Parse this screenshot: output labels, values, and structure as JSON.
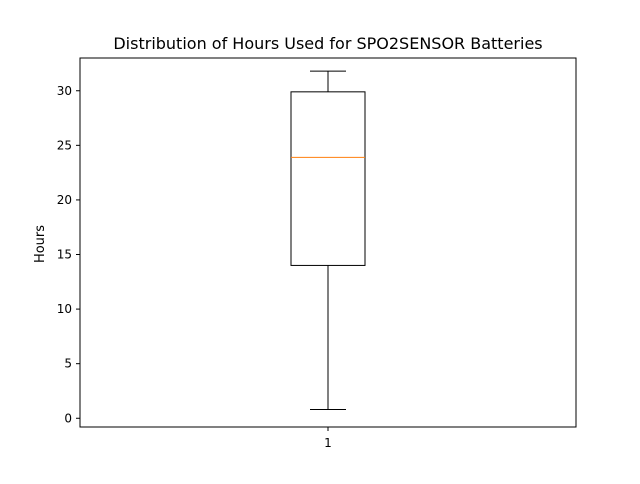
{
  "chart_data": {
    "type": "box",
    "title": "Distribution of Hours Used for SPO2SENSOR Batteries",
    "xlabel": "",
    "ylabel": "Hours",
    "categories": [
      "1"
    ],
    "boxes": [
      {
        "label": "1",
        "whisker_low": 0.8,
        "q1": 14.0,
        "median": 23.9,
        "q3": 29.9,
        "whisker_high": 31.8
      }
    ],
    "ylim": [
      -0.8,
      33.0
    ],
    "yticks": [
      0,
      5,
      10,
      15,
      20,
      25,
      30
    ],
    "grid": false,
    "legend": "none",
    "colors": {
      "box": "#000000",
      "median": "#ff7f0e",
      "axes": "#000000",
      "background": "#ffffff"
    }
  }
}
